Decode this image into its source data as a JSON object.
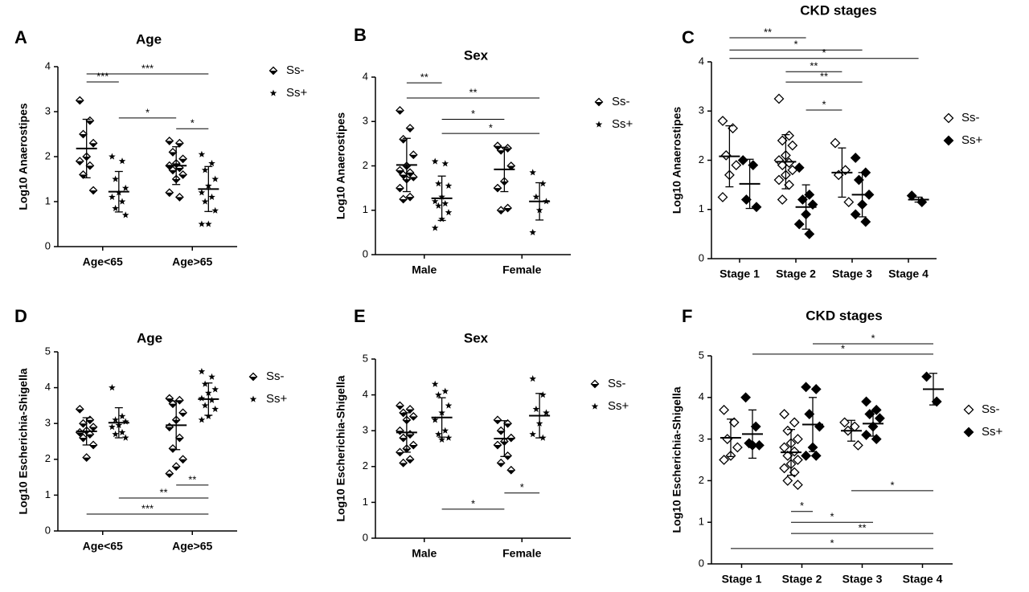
{
  "chart_data": [
    {
      "type": "dotplot",
      "panel": "A",
      "title": "Age",
      "ylabel": "Log10 Anaerostipes",
      "categories": [
        "Age<65",
        "Age>65"
      ],
      "ylim": [
        0,
        4
      ],
      "yticks": [
        0,
        1,
        2,
        3,
        4
      ],
      "series": [
        {
          "name": "Ss-",
          "marker": "half-diamond",
          "values": [
            [
              3.25,
              2.8,
              2.5,
              2.3,
              2.0,
              1.9,
              1.8,
              1.6,
              1.25
            ],
            [
              2.35,
              2.3,
              2.1,
              1.95,
              1.85,
              1.8,
              1.75,
              1.7,
              1.6,
              1.5,
              1.2,
              1.1
            ]
          ],
          "mean": [
            2.18,
            1.8
          ],
          "sd": [
            0.65,
            0.42
          ]
        },
        {
          "name": "Ss+",
          "marker": "star",
          "values": [
            [
              2.0,
              1.9,
              1.5,
              1.3,
              1.2,
              1.1,
              1.0,
              0.85,
              0.7
            ],
            [
              2.05,
              1.85,
              1.7,
              1.5,
              1.35,
              1.2,
              1.1,
              1.0,
              0.8,
              0.5,
              0.5
            ]
          ],
          "mean": [
            1.22,
            1.28
          ],
          "sd": [
            0.45,
            0.5
          ]
        }
      ],
      "brackets": [
        {
          "label": "***",
          "y": 3.66,
          "from": [
            0,
            0
          ],
          "to": [
            0,
            1
          ]
        },
        {
          "label": "***",
          "y": 3.84,
          "from": [
            0,
            0
          ],
          "to": [
            1,
            1
          ]
        },
        {
          "label": "*",
          "y": 2.86,
          "from": [
            0,
            1
          ],
          "to": [
            1,
            0
          ]
        },
        {
          "label": "*",
          "y": 2.62,
          "from": [
            1,
            0
          ],
          "to": [
            1,
            1
          ]
        }
      ]
    },
    {
      "type": "dotplot",
      "panel": "B",
      "title": "Sex",
      "ylabel": "Log10 Anaerostipes",
      "categories": [
        "Male",
        "Female"
      ],
      "ylim": [
        0,
        4
      ],
      "yticks": [
        0,
        1,
        2,
        3,
        4
      ],
      "series": [
        {
          "name": "Ss-",
          "marker": "half-diamond",
          "values": [
            [
              3.25,
              2.85,
              2.6,
              2.25,
              2.0,
              1.9,
              1.85,
              1.8,
              1.75,
              1.7,
              1.5,
              1.3,
              1.25
            ],
            [
              2.45,
              2.4,
              2.35,
              2.0,
              1.65,
              1.5,
              1.05,
              1.0
            ]
          ],
          "mean": [
            2.02,
            1.92
          ],
          "sd": [
            0.6,
            0.5
          ]
        },
        {
          "name": "Ss+",
          "marker": "star",
          "values": [
            [
              2.1,
              2.05,
              1.6,
              1.55,
              1.3,
              1.2,
              1.15,
              1.1,
              0.95,
              0.8,
              0.6
            ],
            [
              1.85,
              1.6,
              1.3,
              1.2,
              1.0,
              0.5
            ]
          ],
          "mean": [
            1.27,
            1.2
          ],
          "sd": [
            0.5,
            0.42
          ]
        }
      ],
      "brackets": [
        {
          "label": "**",
          "y": 3.87,
          "from": [
            0,
            0
          ],
          "to": [
            0,
            1
          ]
        },
        {
          "label": "**",
          "y": 3.53,
          "from": [
            0,
            0
          ],
          "to": [
            1,
            1
          ]
        },
        {
          "label": "*",
          "y": 3.05,
          "from": [
            0,
            1
          ],
          "to": [
            1,
            0
          ]
        },
        {
          "label": "*",
          "y": 2.73,
          "from": [
            0,
            1
          ],
          "to": [
            1,
            1
          ]
        }
      ]
    },
    {
      "type": "dotplot",
      "panel": "C",
      "title": "CKD stages",
      "ylabel": "Log10 Anaerostipes",
      "categories": [
        "Stage 1",
        "Stage 2",
        "Stage 3",
        "Stage 4"
      ],
      "ylim": [
        0,
        4
      ],
      "yticks": [
        0,
        1,
        2,
        3,
        4
      ],
      "series": [
        {
          "name": "Ss-",
          "marker": "open-diamond",
          "values": [
            [
              2.8,
              2.65,
              2.1,
              1.9,
              1.7,
              1.25
            ],
            [
              3.25,
              2.5,
              2.4,
              2.3,
              2.1,
              2.0,
              1.95,
              1.9,
              1.8,
              1.7,
              1.6,
              1.5,
              1.2
            ],
            [
              2.35,
              1.8,
              1.7,
              1.15
            ],
            []
          ],
          "mean": [
            2.08,
            1.97,
            1.75,
            null
          ],
          "sd": [
            0.62,
            0.55,
            0.5,
            null
          ]
        },
        {
          "name": "Ss+",
          "marker": "diamond",
          "values": [
            [
              2.0,
              1.9,
              1.2,
              1.05
            ],
            [
              1.85,
              1.3,
              1.2,
              1.1,
              0.9,
              0.7,
              0.5
            ],
            [
              2.05,
              1.75,
              1.6,
              1.3,
              1.1,
              0.9,
              0.75
            ],
            [
              1.28,
              1.15
            ]
          ],
          "mean": [
            1.52,
            1.05,
            1.3,
            1.2
          ],
          "sd": [
            0.5,
            0.45,
            0.45,
            0.05
          ]
        }
      ],
      "brackets": [
        {
          "label": "**",
          "y": 4.49,
          "from": [
            0,
            0
          ],
          "to": [
            1,
            1
          ]
        },
        {
          "label": "*",
          "y": 4.24,
          "from": [
            0,
            0
          ],
          "to": [
            2,
            1
          ]
        },
        {
          "label": "*",
          "y": 4.07,
          "from": [
            0,
            0
          ],
          "to": [
            3,
            1
          ]
        },
        {
          "label": "**",
          "y": 3.8,
          "from": [
            1,
            0
          ],
          "to": [
            2,
            0
          ]
        },
        {
          "label": "**",
          "y": 3.59,
          "from": [
            1,
            0
          ],
          "to": [
            2,
            1
          ]
        },
        {
          "label": "*",
          "y": 3.02,
          "from": [
            1,
            1
          ],
          "to": [
            2,
            0
          ]
        }
      ]
    },
    {
      "type": "dotplot",
      "panel": "D",
      "title": "Age",
      "ylabel": "Log10 Escherichia-Shigella",
      "categories": [
        "Age<65",
        "Age>65"
      ],
      "ylim": [
        0,
        5
      ],
      "yticks": [
        0,
        1,
        2,
        3,
        4,
        5
      ],
      "series": [
        {
          "name": "Ss-",
          "marker": "half-diamond",
          "values": [
            [
              3.4,
              3.1,
              3.0,
              2.9,
              2.8,
              2.75,
              2.7,
              2.6,
              2.4,
              2.05
            ],
            [
              3.7,
              3.65,
              3.55,
              3.3,
              3.1,
              2.9,
              2.6,
              2.3,
              2.0,
              1.8,
              1.6
            ]
          ],
          "mean": [
            2.78,
            2.95
          ],
          "sd": [
            0.38,
            0.68
          ]
        },
        {
          "name": "Ss+",
          "marker": "star",
          "values": [
            [
              4.0,
              3.2,
              3.1,
              3.05,
              2.95,
              2.9,
              2.75,
              2.7,
              2.6
            ],
            [
              4.45,
              4.3,
              4.1,
              3.95,
              3.85,
              3.7,
              3.65,
              3.5,
              3.4,
              3.2,
              3.1
            ]
          ],
          "mean": [
            3.02,
            3.68
          ],
          "sd": [
            0.42,
            0.45
          ]
        }
      ],
      "brackets": [
        {
          "label": "**",
          "y": 1.28,
          "from": [
            1,
            0
          ],
          "to": [
            1,
            1
          ]
        },
        {
          "label": "**",
          "y": 0.92,
          "from": [
            0,
            1
          ],
          "to": [
            1,
            1
          ]
        },
        {
          "label": "***",
          "y": 0.47,
          "from": [
            0,
            0
          ],
          "to": [
            1,
            1
          ]
        }
      ]
    },
    {
      "type": "dotplot",
      "panel": "E",
      "title": "Sex",
      "ylabel": "Log10 Escherichia-Shigella",
      "categories": [
        "Male",
        "Female"
      ],
      "ylim": [
        0,
        5
      ],
      "yticks": [
        0,
        1,
        2,
        3,
        4,
        5
      ],
      "series": [
        {
          "name": "Ss-",
          "marker": "half-diamond",
          "values": [
            [
              3.7,
              3.6,
              3.5,
              3.4,
              3.3,
              3.0,
              2.9,
              2.8,
              2.6,
              2.5,
              2.4,
              2.2,
              2.1
            ],
            [
              3.3,
              3.2,
              3.0,
              2.8,
              2.7,
              2.6,
              2.3,
              2.1,
              1.9
            ]
          ],
          "mean": [
            2.95,
            2.78
          ],
          "sd": [
            0.55,
            0.5
          ]
        },
        {
          "name": "Ss+",
          "marker": "star",
          "values": [
            [
              4.3,
              4.1,
              4.0,
              3.7,
              3.5,
              3.3,
              3.0,
              2.9,
              2.8,
              2.75
            ],
            [
              4.45,
              4.0,
              3.6,
              3.5,
              3.2,
              2.9,
              2.8
            ]
          ],
          "mean": [
            3.37,
            3.42
          ],
          "sd": [
            0.55,
            0.62
          ]
        }
      ],
      "brackets": [
        {
          "label": "*",
          "y": 0.81,
          "from": [
            0,
            1
          ],
          "to": [
            1,
            0
          ]
        },
        {
          "label": "*",
          "y": 1.26,
          "from": [
            1,
            0
          ],
          "to": [
            1,
            1
          ]
        }
      ]
    },
    {
      "type": "dotplot",
      "panel": "F",
      "title": "CKD stages",
      "ylabel": "Log10 Escherichia-Shigella",
      "categories": [
        "Stage 1",
        "Stage 2",
        "Stage 3",
        "Stage 4"
      ],
      "ylim": [
        0,
        5
      ],
      "yticks": [
        0,
        1,
        2,
        3,
        4,
        5
      ],
      "series": [
        {
          "name": "Ss-",
          "marker": "open-diamond",
          "values": [
            [
              3.7,
              3.4,
              3.0,
              2.8,
              2.6,
              2.5
            ],
            [
              3.6,
              3.4,
              3.2,
              3.0,
              2.9,
              2.8,
              2.7,
              2.6,
              2.5,
              2.4,
              2.3,
              2.2,
              2.0,
              1.9
            ],
            [
              3.4,
              3.3,
              3.2,
              2.85
            ],
            []
          ],
          "mean": [
            3.03,
            2.68,
            3.2,
            null
          ],
          "sd": [
            0.45,
            0.55,
            0.25,
            null
          ]
        },
        {
          "name": "Ss+",
          "marker": "diamond",
          "values": [
            [
              4.0,
              3.3,
              2.9,
              2.85,
              2.85
            ],
            [
              4.25,
              4.2,
              3.6,
              3.3,
              2.8,
              2.6,
              2.6
            ],
            [
              3.9,
              3.7,
              3.6,
              3.5,
              3.3,
              3.1,
              3.0
            ],
            [
              4.5,
              3.9
            ]
          ],
          "mean": [
            3.12,
            3.35,
            3.37,
            4.2
          ],
          "sd": [
            0.58,
            0.65,
            0.3,
            0.38
          ]
        }
      ],
      "brackets": [
        {
          "label": "*",
          "y": 5.29,
          "from": [
            1,
            1
          ],
          "to": [
            3,
            1
          ]
        },
        {
          "label": "*",
          "y": 5.04,
          "from": [
            0,
            1
          ],
          "to": [
            3,
            1
          ]
        },
        {
          "label": "*",
          "y": 1.76,
          "from": [
            2,
            0
          ],
          "to": [
            3,
            1
          ]
        },
        {
          "label": "*",
          "y": 1.26,
          "from": [
            1,
            0
          ],
          "to": [
            1,
            1
          ]
        },
        {
          "label": "*",
          "y": 1.0,
          "from": [
            1,
            0
          ],
          "to": [
            2,
            1
          ]
        },
        {
          "label": "**",
          "y": 0.73,
          "from": [
            1,
            0
          ],
          "to": [
            3,
            1
          ]
        },
        {
          "label": "*",
          "y": 0.37,
          "from": [
            0,
            0
          ],
          "to": [
            3,
            1
          ]
        }
      ]
    }
  ]
}
